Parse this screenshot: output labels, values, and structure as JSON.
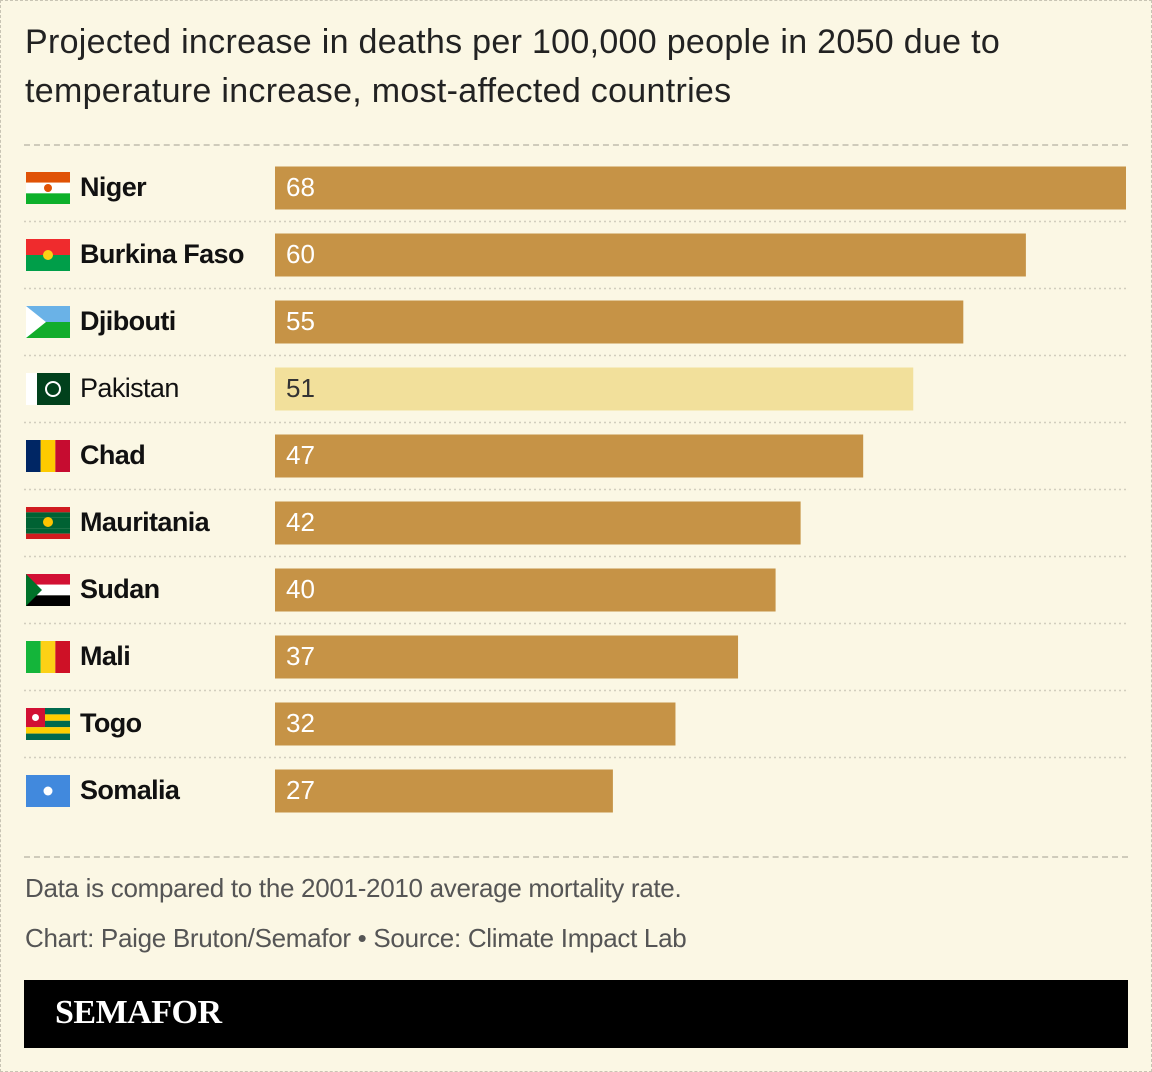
{
  "chart_data": {
    "type": "bar",
    "orientation": "horizontal",
    "title": "Projected increase in deaths per 100,000 people in 2050 due to temperature increase, most-affected countries",
    "categories": [
      "Niger",
      "Burkina Faso",
      "Djibouti",
      "Pakistan",
      "Chad",
      "Mauritania",
      "Sudan",
      "Mali",
      "Togo",
      "Somalia"
    ],
    "values": [
      68,
      60,
      55,
      51,
      47,
      42,
      40,
      37,
      32,
      27
    ],
    "colors": [
      "#c69346",
      "#c69346",
      "#c69346",
      "#f2e09b",
      "#c69346",
      "#c69346",
      "#c69346",
      "#c69346",
      "#c69346",
      "#c69346"
    ],
    "label_weights": [
      "bold",
      "bold",
      "bold",
      "normal",
      "bold",
      "bold",
      "bold",
      "bold",
      "bold",
      "bold"
    ],
    "xlim": [
      0,
      68
    ],
    "note": "Data is compared to the 2001-2010 average mortality rate.",
    "credit": "Chart: Paige Bruton/Semafor • Source: Climate Impact Lab",
    "brand": "SEMAFOR"
  }
}
